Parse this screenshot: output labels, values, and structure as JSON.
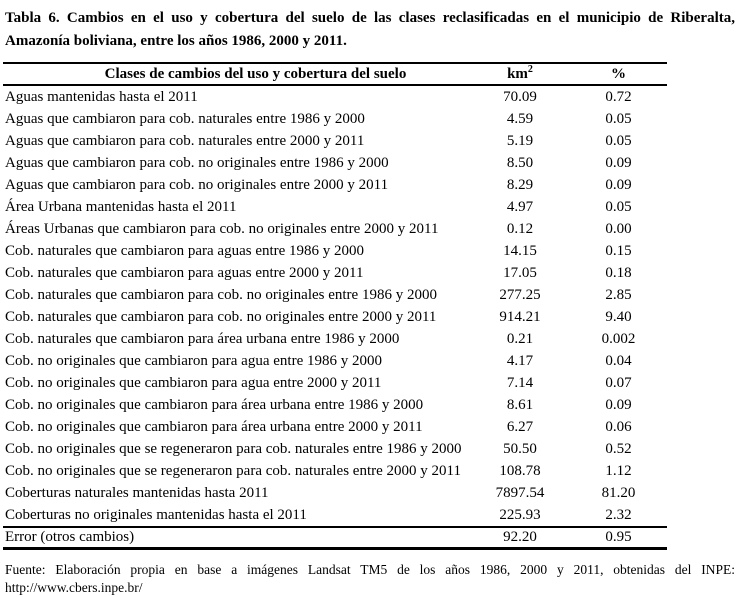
{
  "title": {
    "line1": "Tabla 6. Cambios en el uso y cobertura del suelo de las clases reclasificadas en el municipio de Riberalta,",
    "line2": "Amazonía boliviana, entre los años 1986, 2000 y 2011."
  },
  "table": {
    "columns": {
      "label": "Clases de cambios del uso y cobertura del suelo",
      "km2_base": "km",
      "km2_sup": "2",
      "pct": "%"
    },
    "rows": [
      {
        "label": "Aguas mantenidas hasta el 2011",
        "km2": "70.09",
        "pct": "0.72"
      },
      {
        "label": "Aguas que cambiaron para cob. naturales entre 1986 y 2000",
        "km2": "4.59",
        "pct": "0.05"
      },
      {
        "label": "Aguas que cambiaron para cob. naturales entre 2000 y 2011",
        "km2": "5.19",
        "pct": "0.05"
      },
      {
        "label": "Aguas que cambiaron para cob. no originales entre 1986 y 2000",
        "km2": "8.50",
        "pct": "0.09"
      },
      {
        "label": "Aguas que cambiaron para cob. no originales entre 2000 y 2011",
        "km2": "8.29",
        "pct": "0.09"
      },
      {
        "label": "Área Urbana mantenidas hasta el 2011",
        "km2": "4.97",
        "pct": "0.05"
      },
      {
        "label": "Áreas Urbanas que cambiaron para cob. no originales entre 2000 y 2011",
        "km2": "0.12",
        "pct": "0.00"
      },
      {
        "label": "Cob. naturales que cambiaron para aguas entre 1986 y 2000",
        "km2": "14.15",
        "pct": "0.15"
      },
      {
        "label": "Cob. naturales que cambiaron para aguas entre 2000 y 2011",
        "km2": "17.05",
        "pct": "0.18"
      },
      {
        "label": "Cob. naturales que cambiaron para cob. no originales entre 1986 y 2000",
        "km2": "277.25",
        "pct": "2.85"
      },
      {
        "label": "Cob. naturales que cambiaron para cob. no originales entre 2000 y 2011",
        "km2": "914.21",
        "pct": "9.40"
      },
      {
        "label": "Cob. naturales que cambiaron para área urbana entre 1986 y 2000",
        "km2": "0.21",
        "pct": "0.002"
      },
      {
        "label": "Cob. no originales que cambiaron para agua entre 1986 y 2000",
        "km2": "4.17",
        "pct": "0.04"
      },
      {
        "label": "Cob. no originales que cambiaron para agua entre 2000 y 2011",
        "km2": "7.14",
        "pct": "0.07"
      },
      {
        "label": "Cob. no originales que cambiaron para área urbana entre 1986 y 2000",
        "km2": "8.61",
        "pct": "0.09"
      },
      {
        "label": "Cob. no originales que cambiaron para área urbana entre 2000 y 2011",
        "km2": "6.27",
        "pct": "0.06"
      },
      {
        "label": "Cob. no originales que se regeneraron para cob. naturales entre 1986 y 2000",
        "km2": "50.50",
        "pct": "0.52"
      },
      {
        "label": "Cob. no originales que se regeneraron para cob. naturales entre 2000 y 2011",
        "km2": "108.78",
        "pct": "1.12"
      },
      {
        "label": "Coberturas naturales mantenidas hasta 2011",
        "km2": "7897.54",
        "pct": "81.20"
      },
      {
        "label": "Coberturas no originales mantenidas hasta el 2011",
        "km2": "225.93",
        "pct": "2.32"
      }
    ],
    "error_row": {
      "label": "Error (otros cambios)",
      "km2": "92.20",
      "pct": "0.95"
    }
  },
  "footer": {
    "line1": "Fuente: Elaboración propia en base a imágenes Landsat TM5 de los años 1986, 2000 y 2011, obtenidas del INPE:",
    "line2": "http://www.cbers.inpe.br/"
  }
}
